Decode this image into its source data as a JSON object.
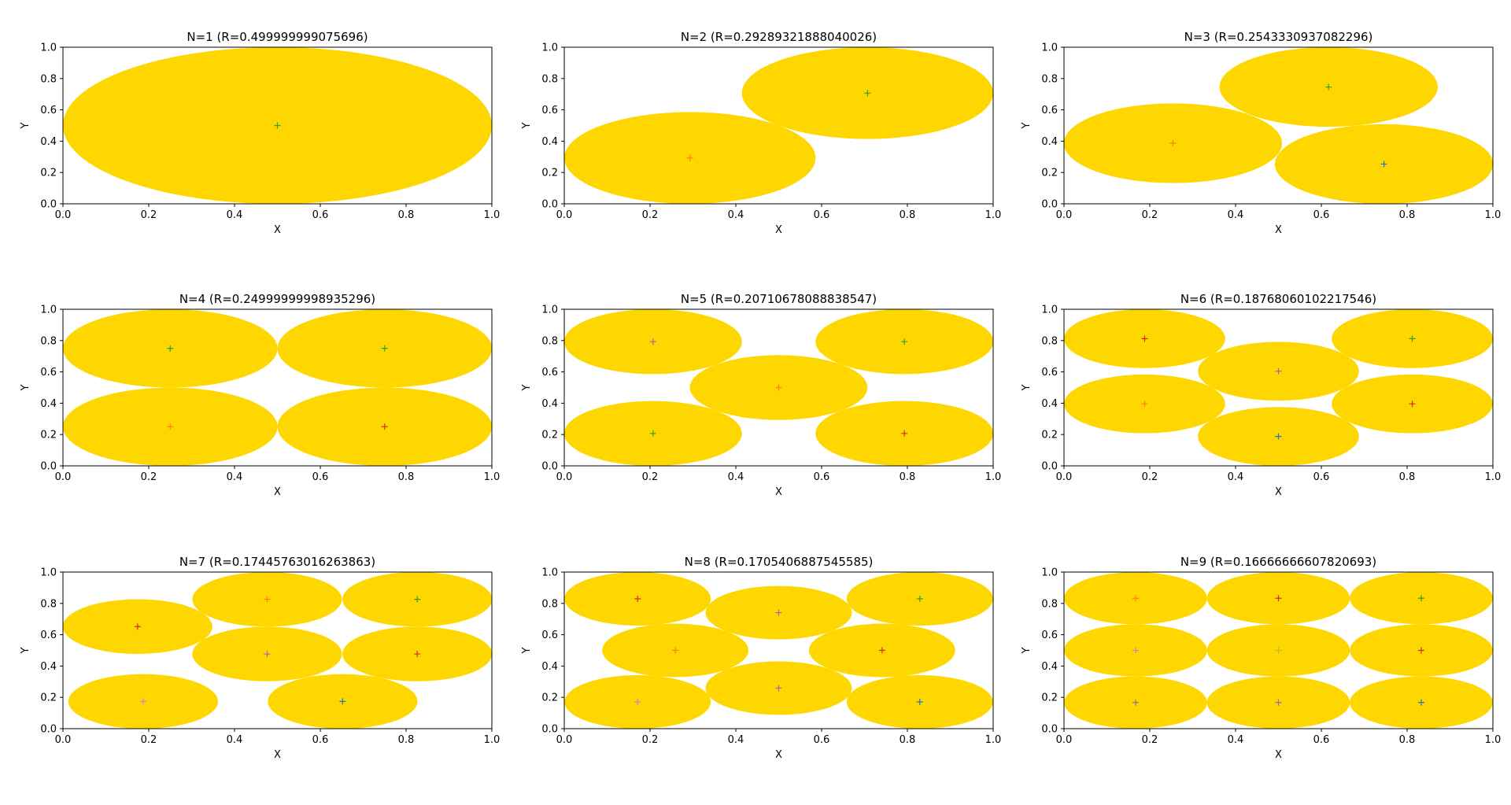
{
  "chart_data": [
    {
      "type": "scatter",
      "title": "N=1 (R=0.499999999075696)",
      "xlabel": "X",
      "ylabel": "Y",
      "xlim": [
        0,
        1
      ],
      "ylim": [
        0,
        1
      ],
      "xticks": [
        "0.0",
        "0.2",
        "0.4",
        "0.6",
        "0.8",
        "1.0"
      ],
      "yticks": [
        "0.0",
        "0.2",
        "0.4",
        "0.6",
        "0.8",
        "1.0"
      ],
      "grid": false,
      "radius": 0.499999999075696,
      "points": [
        {
          "x": 0.5,
          "y": 0.5,
          "color": "#2ca02c"
        }
      ]
    },
    {
      "type": "scatter",
      "title": "N=2 (R=0.29289321888040026)",
      "xlabel": "X",
      "ylabel": "Y",
      "xlim": [
        0,
        1
      ],
      "ylim": [
        0,
        1
      ],
      "xticks": [
        "0.0",
        "0.2",
        "0.4",
        "0.6",
        "0.8",
        "1.0"
      ],
      "yticks": [
        "0.0",
        "0.2",
        "0.4",
        "0.6",
        "0.8",
        "1.0"
      ],
      "grid": false,
      "radius": 0.29289321888040026,
      "points": [
        {
          "x": 0.293,
          "y": 0.293,
          "color": "#ff7f0e"
        },
        {
          "x": 0.707,
          "y": 0.707,
          "color": "#2ca02c"
        }
      ]
    },
    {
      "type": "scatter",
      "title": "N=3 (R=0.2543330937082296)",
      "xlabel": "X",
      "ylabel": "Y",
      "xlim": [
        0,
        1
      ],
      "ylim": [
        0,
        1
      ],
      "xticks": [
        "0.0",
        "0.2",
        "0.4",
        "0.6",
        "0.8",
        "1.0"
      ],
      "yticks": [
        "0.0",
        "0.2",
        "0.4",
        "0.6",
        "0.8",
        "1.0"
      ],
      "grid": false,
      "radius": 0.2543330937082296,
      "points": [
        {
          "x": 0.254,
          "y": 0.387,
          "color": "#ff7f0e"
        },
        {
          "x": 0.617,
          "y": 0.746,
          "color": "#2ca02c"
        },
        {
          "x": 0.746,
          "y": 0.254,
          "color": "#1f77b4"
        }
      ]
    },
    {
      "type": "scatter",
      "title": "N=4 (R=0.24999999998935296)",
      "xlabel": "X",
      "ylabel": "Y",
      "xlim": [
        0,
        1
      ],
      "ylim": [
        0,
        1
      ],
      "xticks": [
        "0.0",
        "0.2",
        "0.4",
        "0.6",
        "0.8",
        "1.0"
      ],
      "yticks": [
        "0.0",
        "0.2",
        "0.4",
        "0.6",
        "0.8",
        "1.0"
      ],
      "grid": false,
      "radius": 0.24999999998935296,
      "points": [
        {
          "x": 0.25,
          "y": 0.75,
          "color": "#2ca02c"
        },
        {
          "x": 0.75,
          "y": 0.75,
          "color": "#2ca02c"
        },
        {
          "x": 0.25,
          "y": 0.25,
          "color": "#ff7f0e"
        },
        {
          "x": 0.75,
          "y": 0.25,
          "color": "#d62728"
        }
      ]
    },
    {
      "type": "scatter",
      "title": "N=5 (R=0.20710678088838547)",
      "xlabel": "X",
      "ylabel": "Y",
      "xlim": [
        0,
        1
      ],
      "ylim": [
        0,
        1
      ],
      "xticks": [
        "0.0",
        "0.2",
        "0.4",
        "0.6",
        "0.8",
        "1.0"
      ],
      "yticks": [
        "0.0",
        "0.2",
        "0.4",
        "0.6",
        "0.8",
        "1.0"
      ],
      "grid": false,
      "radius": 0.20710678088838547,
      "points": [
        {
          "x": 0.207,
          "y": 0.793,
          "color": "#9467bd"
        },
        {
          "x": 0.793,
          "y": 0.793,
          "color": "#2ca02c"
        },
        {
          "x": 0.5,
          "y": 0.5,
          "color": "#ff7f0e"
        },
        {
          "x": 0.207,
          "y": 0.207,
          "color": "#2ca02c"
        },
        {
          "x": 0.793,
          "y": 0.207,
          "color": "#d62728"
        }
      ]
    },
    {
      "type": "scatter",
      "title": "N=6 (R=0.18768060102217546)",
      "xlabel": "X",
      "ylabel": "Y",
      "xlim": [
        0,
        1
      ],
      "ylim": [
        0,
        1
      ],
      "xticks": [
        "0.0",
        "0.2",
        "0.4",
        "0.6",
        "0.8",
        "1.0"
      ],
      "yticks": [
        "0.0",
        "0.2",
        "0.4",
        "0.6",
        "0.8",
        "1.0"
      ],
      "grid": false,
      "radius": 0.18768060102217546,
      "points": [
        {
          "x": 0.188,
          "y": 0.812,
          "color": "#d62728"
        },
        {
          "x": 0.812,
          "y": 0.812,
          "color": "#2ca02c"
        },
        {
          "x": 0.5,
          "y": 0.604,
          "color": "#9467bd"
        },
        {
          "x": 0.188,
          "y": 0.396,
          "color": "#ff7f0e"
        },
        {
          "x": 0.812,
          "y": 0.396,
          "color": "#d62728"
        },
        {
          "x": 0.5,
          "y": 0.188,
          "color": "#1f77b4"
        }
      ]
    },
    {
      "type": "scatter",
      "title": "N=7 (R=0.17445763016263863)",
      "xlabel": "X",
      "ylabel": "Y",
      "xlim": [
        0,
        1
      ],
      "ylim": [
        0,
        1
      ],
      "xticks": [
        "0.0",
        "0.2",
        "0.4",
        "0.6",
        "0.8",
        "1.0"
      ],
      "yticks": [
        "0.0",
        "0.2",
        "0.4",
        "0.6",
        "0.8",
        "1.0"
      ],
      "grid": false,
      "radius": 0.17445763016263863,
      "points": [
        {
          "x": 0.476,
          "y": 0.826,
          "color": "#ff7f0e"
        },
        {
          "x": 0.826,
          "y": 0.826,
          "color": "#2ca02c"
        },
        {
          "x": 0.174,
          "y": 0.652,
          "color": "#d62728"
        },
        {
          "x": 0.476,
          "y": 0.477,
          "color": "#9467bd"
        },
        {
          "x": 0.826,
          "y": 0.477,
          "color": "#d62728"
        },
        {
          "x": 0.187,
          "y": 0.174,
          "color": "#e377c2"
        },
        {
          "x": 0.652,
          "y": 0.174,
          "color": "#1f77b4"
        }
      ]
    },
    {
      "type": "scatter",
      "title": "N=8 (R=0.1705406887545585)",
      "xlabel": "X",
      "ylabel": "Y",
      "xlim": [
        0,
        1
      ],
      "ylim": [
        0,
        1
      ],
      "xticks": [
        "0.0",
        "0.2",
        "0.4",
        "0.6",
        "0.8",
        "1.0"
      ],
      "yticks": [
        "0.0",
        "0.2",
        "0.4",
        "0.6",
        "0.8",
        "1.0"
      ],
      "grid": false,
      "radius": 0.1705406887545585,
      "points": [
        {
          "x": 0.171,
          "y": 0.829,
          "color": "#d62728"
        },
        {
          "x": 0.829,
          "y": 0.829,
          "color": "#2ca02c"
        },
        {
          "x": 0.5,
          "y": 0.741,
          "color": "#9467bd"
        },
        {
          "x": 0.259,
          "y": 0.5,
          "color": "#ff7f0e"
        },
        {
          "x": 0.741,
          "y": 0.5,
          "color": "#d62728"
        },
        {
          "x": 0.171,
          "y": 0.171,
          "color": "#e377c2"
        },
        {
          "x": 0.5,
          "y": 0.259,
          "color": "#9467bd"
        },
        {
          "x": 0.829,
          "y": 0.171,
          "color": "#1f77b4"
        }
      ]
    },
    {
      "type": "scatter",
      "title": "N=9 (R=0.16666666607820693)",
      "xlabel": "X",
      "ylabel": "Y",
      "xlim": [
        0,
        1
      ],
      "ylim": [
        0,
        1
      ],
      "xticks": [
        "0.0",
        "0.2",
        "0.4",
        "0.6",
        "0.8",
        "1.0"
      ],
      "yticks": [
        "0.0",
        "0.2",
        "0.4",
        "0.6",
        "0.8",
        "1.0"
      ],
      "grid": false,
      "radius": 0.16666666607820693,
      "points": [
        {
          "x": 0.167,
          "y": 0.833,
          "color": "#ff7f0e"
        },
        {
          "x": 0.5,
          "y": 0.833,
          "color": "#d62728"
        },
        {
          "x": 0.833,
          "y": 0.833,
          "color": "#2ca02c"
        },
        {
          "x": 0.167,
          "y": 0.5,
          "color": "#e377c2"
        },
        {
          "x": 0.5,
          "y": 0.5,
          "color": "#bcbd22"
        },
        {
          "x": 0.833,
          "y": 0.5,
          "color": "#d62728"
        },
        {
          "x": 0.167,
          "y": 0.167,
          "color": "#9467bd"
        },
        {
          "x": 0.5,
          "y": 0.167,
          "color": "#9467bd"
        },
        {
          "x": 0.833,
          "y": 0.167,
          "color": "#1f77b4"
        }
      ]
    }
  ],
  "style": {
    "circle_fill": "#FFD700",
    "axis_color": "#000000"
  }
}
